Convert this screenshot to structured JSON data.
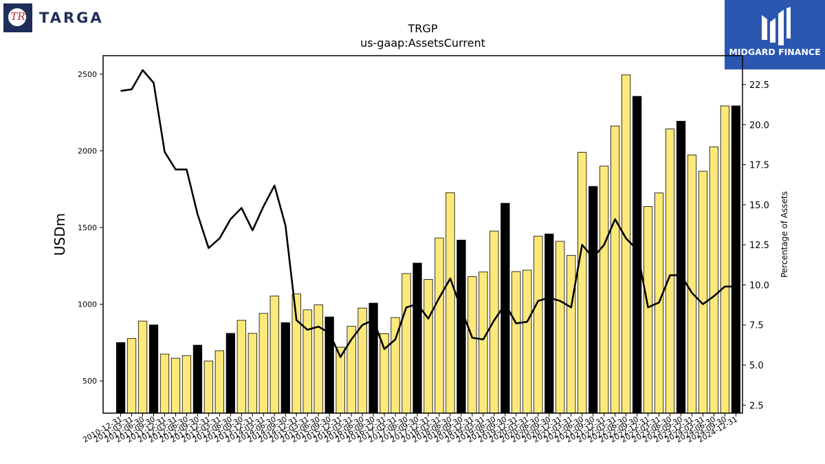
{
  "logos": {
    "left_mark": "TR",
    "left_brand": "TARGA",
    "right_brand": "MIDGARD FINANCE"
  },
  "chart_data": {
    "type": "bar",
    "title": "TRGP",
    "subtitle": "us-gaap:AssetsCurrent",
    "ylabel": "USDm",
    "y2label": "Percentage of Assets",
    "ylim": [
      290,
      2620
    ],
    "y2lim": [
      2.0,
      24.3
    ],
    "yticks": [
      500,
      1000,
      1500,
      2000,
      2500
    ],
    "y2ticks": [
      2.5,
      5.0,
      7.5,
      10.0,
      12.5,
      15.0,
      17.5,
      20.0,
      22.5
    ],
    "y2tick_labels": [
      "2.5",
      "5.0",
      "7.5",
      "10.0",
      "12.5",
      "15.0",
      "17.5",
      "20.0",
      "22.5"
    ],
    "colors": {
      "annual": "#000000",
      "quarter": "#fde97a",
      "line": "#000000"
    },
    "grid": false,
    "categories": [
      "2010-12-31",
      "2011-03-31",
      "2011-06-30",
      "2011-09-30",
      "2011-12-31",
      "2012-03-31",
      "2012-06-30",
      "2012-09-30",
      "2012-12-31",
      "2013-03-31",
      "2013-06-30",
      "2013-09-30",
      "2013-12-31",
      "2014-03-31",
      "2014-06-30",
      "2014-09-30",
      "2014-12-31",
      "2015-03-31",
      "2015-06-30",
      "2015-09-30",
      "2015-12-31",
      "2016-03-31",
      "2016-06-30",
      "2016-09-30",
      "2016-12-31",
      "2017-03-31",
      "2017-06-30",
      "2017-09-30",
      "2017-12-31",
      "2018-03-31",
      "2018-06-30",
      "2018-09-30",
      "2018-12-31",
      "2019-03-31",
      "2019-06-30",
      "2019-09-30",
      "2019-12-31",
      "2020-03-31",
      "2020-06-30",
      "2020-09-30",
      "2020-12-31",
      "2021-03-31",
      "2021-06-30",
      "2021-09-30",
      "2021-12-31",
      "2022-03-31",
      "2022-06-30",
      "2022-09-30",
      "2022-12-31",
      "2023-03-31",
      "2023-06-30",
      "2023-09-30",
      "2023-12-31",
      "2024-03-31",
      "2024-06-30",
      "2024-09-30",
      "2024-12-31"
    ],
    "tick_labels": [
      "2010-12-31",
      "2011-03-31",
      "2011-06-30",
      "2011-09-30",
      "2011-12-31",
      "2012-03-31",
      "2012-06-30",
      "2012-09-30",
      "2012-12-31",
      "2013-03-31",
      "2013-06-30",
      "2013-09-30",
      "2013-12-31",
      "2014-03-31",
      "2014-06-30",
      "2014-09-30",
      "2014-12-31",
      "2015-03-31",
      "2015-06-30",
      "2015-09-30",
      "2015-12-31",
      "2016-03-31",
      "2016-06-30",
      "2016-09-30",
      "2016-12-31",
      "2017-03-31",
      "2017-06-30",
      "2017-09-30",
      "2017-12-31",
      "2018-03-31",
      "2018-06-30",
      "2018-09-30",
      "2018-12-31",
      "2019-03-31",
      "2019-06-30",
      "2019-09-30",
      "2019-12-31",
      "2020-03-31",
      "2020-06-30",
      "2020-09-30",
      "2020-12-31",
      "2021-03-31",
      "2021-06-30",
      "2021-09-30",
      "2021-12-31",
      "2022-03-31",
      "2022-06-30",
      "2022-09-30",
      "2022-12-31",
      "2023-03-31",
      "2023-06-30",
      "2023-09-30",
      "2023-12-31",
      "2024-03-31",
      "2024-06-30",
      "2024-09-30",
      "2024-12-31"
    ],
    "annual_flags": [
      1,
      0,
      0,
      1,
      0,
      0,
      0,
      1,
      0,
      0,
      1,
      0,
      0,
      0,
      0,
      1,
      0,
      0,
      0,
      1,
      0,
      0,
      0,
      1,
      0,
      0,
      0,
      1,
      0,
      0,
      0,
      1,
      0,
      0,
      0,
      1,
      0,
      0,
      0,
      1,
      0,
      0,
      0,
      1,
      0,
      0,
      0,
      1,
      0,
      0,
      0,
      1,
      0,
      0,
      0,
      0,
      1
    ],
    "series": [
      {
        "name": "AssetsCurrent",
        "values": [
          750,
          777,
          890,
          865,
          675,
          648,
          665,
          733,
          630,
          697,
          810,
          895,
          810,
          940,
          1053,
          880,
          1067,
          963,
          996,
          917,
          720,
          856,
          975,
          1007,
          808,
          913,
          1200,
          1268,
          1162,
          1432,
          1727,
          1418,
          1180,
          1210,
          1477,
          1658,
          1213,
          1222,
          1443,
          1458,
          1410,
          1318,
          1990,
          1768,
          1900,
          2162,
          2495,
          2355,
          1637,
          1725,
          2142,
          2193,
          1972,
          1867,
          2025,
          2293,
          2293
        ]
      },
      {
        "name": "Percentage of Assets",
        "axis": "right",
        "values": [
          22.1,
          22.2,
          23.4,
          22.6,
          18.3,
          17.2,
          17.2,
          14.4,
          12.3,
          12.9,
          14.1,
          14.8,
          13.4,
          14.9,
          16.2,
          13.7,
          7.8,
          7.2,
          7.4,
          7.0,
          5.5,
          6.6,
          7.5,
          7.8,
          6.0,
          6.6,
          8.6,
          8.8,
          7.9,
          9.2,
          10.4,
          8.5,
          6.7,
          6.6,
          7.8,
          8.8,
          7.6,
          7.7,
          9.0,
          9.2,
          9.0,
          8.6,
          12.5,
          11.7,
          12.5,
          14.1,
          12.9,
          12.2,
          8.6,
          8.9,
          10.6,
          10.6,
          9.5,
          8.8,
          9.3,
          9.9,
          9.9
        ]
      }
    ]
  }
}
